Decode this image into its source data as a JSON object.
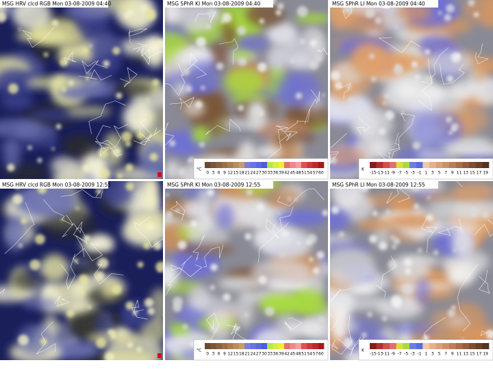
{
  "panels": [
    {
      "title": "MSG HRV clcd RGB Mon 03-08-2009 04:40",
      "kind": "hrv"
    },
    {
      "title": "MSG SPhR KI Mon 03-08-2009 04:40",
      "kind": "ki",
      "colorbar": {
        "unit": "°C",
        "ticks": [
          0,
          3,
          6,
          9,
          12,
          15,
          18,
          21,
          24,
          27,
          30,
          33,
          36,
          39,
          42,
          45,
          48,
          51,
          54,
          57,
          60
        ],
        "colors": [
          "#6b4a2e",
          "#7a5535",
          "#8a613d",
          "#9b6e46",
          "#ab7c50",
          "#bd8b5c",
          "#c99b6c",
          "#7b7fd8",
          "#6a74e0",
          "#5b68e0",
          "#4d5cd8",
          "#b9e64a",
          "#d6ef3e",
          "#f0f030",
          "#e87070",
          "#ec8a8a",
          "#f0a0a0",
          "#e05050",
          "#d03838",
          "#c02828",
          "#a81818"
        ]
      }
    },
    {
      "title": "MSG SPhR LI Mon 03-08-2009 04:40",
      "kind": "li",
      "colorbar": {
        "unit": "K",
        "ticks": [
          -15,
          -13,
          -11,
          -9,
          -7,
          -5,
          -3,
          -1,
          1,
          3,
          5,
          7,
          9,
          11,
          13,
          15,
          17,
          19
        ],
        "colors": [
          "#8b1a1a",
          "#b03030",
          "#d05050",
          "#e07070",
          "#d8e040",
          "#a8d848",
          "#6d7ee0",
          "#5a6cd8",
          "#f2c8a8",
          "#e8b08a",
          "#daa078",
          "#cc9068",
          "#bb7f58",
          "#a86e48",
          "#955e3c",
          "#7f4e30",
          "#6a4026",
          "#56331e"
        ]
      }
    },
    {
      "title": "MSG HRV clcd RGB Mon 03-08-2009 12:55",
      "kind": "hrv"
    },
    {
      "title": "MSG SPhR KI Mon 03-08-2009 12:55",
      "kind": "ki",
      "colorbar": {
        "unit": "°C",
        "ticks": [
          0,
          3,
          6,
          9,
          12,
          15,
          18,
          21,
          24,
          27,
          30,
          33,
          36,
          39,
          42,
          45,
          48,
          51,
          54,
          57,
          60
        ],
        "colors": [
          "#6b4a2e",
          "#7a5535",
          "#8a613d",
          "#9b6e46",
          "#ab7c50",
          "#bd8b5c",
          "#c99b6c",
          "#7b7fd8",
          "#6a74e0",
          "#5b68e0",
          "#4d5cd8",
          "#b9e64a",
          "#d6ef3e",
          "#f0f030",
          "#e87070",
          "#ec8a8a",
          "#f0a0a0",
          "#e05050",
          "#d03838",
          "#c02828",
          "#a81818"
        ]
      }
    },
    {
      "title": "MSG SPhR LI Mon 03-08-2009 12:55",
      "kind": "li",
      "colorbar": {
        "unit": "K",
        "ticks": [
          -15,
          -13,
          -11,
          -9,
          -7,
          -5,
          -3,
          -1,
          1,
          3,
          5,
          7,
          9,
          11,
          13,
          15,
          17,
          19
        ],
        "colors": [
          "#8b1a1a",
          "#b03030",
          "#d05050",
          "#e07070",
          "#d8e040",
          "#a8d848",
          "#6d7ee0",
          "#5a6cd8",
          "#f2c8a8",
          "#e8b08a",
          "#daa078",
          "#cc9068",
          "#bb7f58",
          "#a86e48",
          "#955e3c",
          "#7f4e30",
          "#6a4026",
          "#56331e"
        ]
      }
    }
  ]
}
